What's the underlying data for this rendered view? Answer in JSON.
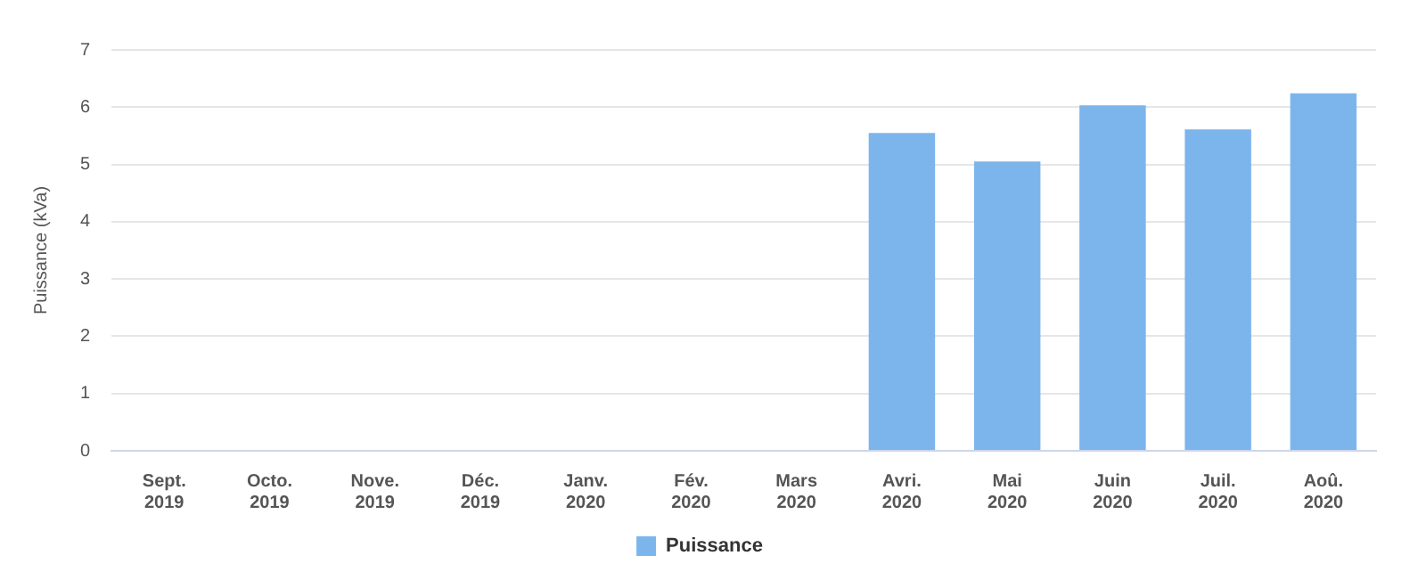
{
  "chart_data": {
    "type": "bar",
    "ylabel": "Puissance (kVa)",
    "categories": [
      "Sept.\n2019",
      "Octo.\n2019",
      "Nove.\n2019",
      "Déc.\n2019",
      "Janv.\n2020",
      "Fév.\n2020",
      "Mars\n2020",
      "Avri.\n2020",
      "Mai\n2020",
      "Juin\n2020",
      "Juil.\n2020",
      "Aoû.\n2020"
    ],
    "series": [
      {
        "name": "Puissance",
        "color": "#7cb5ec",
        "values": [
          null,
          null,
          null,
          null,
          null,
          null,
          null,
          5.55,
          5.05,
          6.03,
          5.61,
          6.24
        ]
      }
    ],
    "ylim": [
      0,
      7
    ],
    "yticks": [
      0,
      1,
      2,
      3,
      4,
      5,
      6,
      7
    ],
    "grid": "y",
    "legend": "bottom"
  }
}
